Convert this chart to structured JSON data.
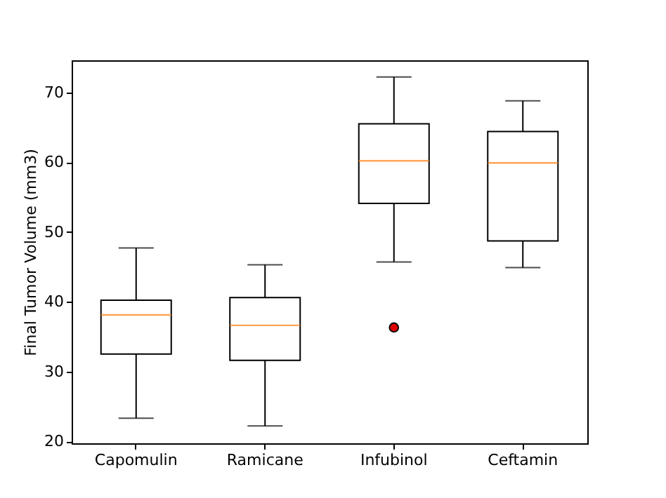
{
  "chart_data": {
    "type": "box",
    "ylabel": "Final Tumor Volume (mm3)",
    "categories": [
      "Capomulin",
      "Ramicane",
      "Infubinol",
      "Ceftamin"
    ],
    "boxes": [
      {
        "low": 23.3,
        "q1": 32.5,
        "median": 38.1,
        "q3": 40.2,
        "high": 47.7
      },
      {
        "low": 22.2,
        "q1": 31.6,
        "median": 36.6,
        "q3": 40.6,
        "high": 45.3
      },
      {
        "low": 45.7,
        "q1": 54.1,
        "median": 60.2,
        "q3": 65.5,
        "high": 72.2,
        "outliers": [
          36.3
        ]
      },
      {
        "low": 44.9,
        "q1": 48.7,
        "median": 59.9,
        "q3": 64.4,
        "high": 68.8
      }
    ],
    "ylim": [
      19.7,
      74.6
    ],
    "yticks": [
      20,
      30,
      40,
      50,
      60,
      70
    ],
    "grid": false
  }
}
